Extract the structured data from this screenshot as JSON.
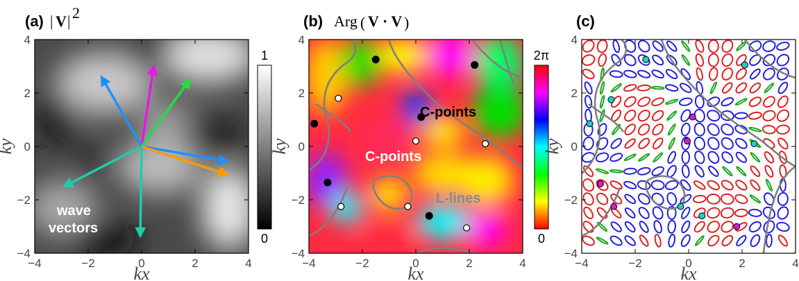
{
  "chart_data": [
    {
      "panel": "(a)",
      "title_parts": [
        "(a)",
        "|V|",
        "2"
      ],
      "type": "heatmap",
      "xlabel": "kx",
      "ylabel": "ky",
      "xlim": [
        -4,
        4
      ],
      "ylim": [
        -4,
        4
      ],
      "xticks": [
        "−4",
        "−2",
        "0",
        "2",
        "4"
      ],
      "yticks": [
        "4",
        "2",
        "0",
        "−2",
        "−4"
      ],
      "colorbar": {
        "min_label": "0",
        "max_label": "1",
        "colors": [
          "#000000",
          "#ffffff"
        ]
      },
      "annotation": [
        "wave",
        "vectors"
      ],
      "arrows": [
        {
          "color": "#1e90ff",
          "dx": -1.5,
          "dy": 2.6
        },
        {
          "color": "#e619e6",
          "dx": 0.45,
          "dy": 3.0
        },
        {
          "color": "#22dd44",
          "dx": 1.8,
          "dy": 2.5
        },
        {
          "color": "#1e90ff",
          "dx": 3.2,
          "dy": -0.55
        },
        {
          "color": "#ff9900",
          "dx": 3.2,
          "dy": -1.05
        },
        {
          "color": "#22ccaa",
          "dx": -2.9,
          "dy": -1.5
        },
        {
          "color": "#22ccaa",
          "dx": -0.05,
          "dy": -3.35
        }
      ]
    },
    {
      "panel": "(b)",
      "title_parts": [
        "(b)",
        "Arg",
        "V · V"
      ],
      "type": "heatmap",
      "xlabel": "kx",
      "ylabel": "ky",
      "xlim": [
        -4,
        4
      ],
      "ylim": [
        -4,
        4
      ],
      "xticks": [
        "−4",
        "−2",
        "0",
        "2",
        "4"
      ],
      "yticks": [
        "4",
        "2",
        "0",
        "−2",
        "−4"
      ],
      "colorbar": {
        "min_label": "0",
        "max_label": "2π",
        "colors": [
          "#ff0000",
          "#ffff00",
          "#00ff00",
          "#00ffff",
          "#0000ff",
          "#ff00ff",
          "#ff0000"
        ]
      },
      "annotations": {
        "c_points_top": "C-points",
        "c_points_mid": "C-points",
        "l_lines": "L-lines"
      },
      "c_points_black": [
        [
          -1.5,
          3.25
        ],
        [
          2.2,
          3.05
        ],
        [
          0.2,
          1.1
        ],
        [
          -3.8,
          0.85
        ],
        [
          -3.3,
          -1.35
        ],
        [
          0.5,
          -2.6
        ]
      ],
      "c_points_white": [
        [
          -2.9,
          1.8
        ],
        [
          0.0,
          0.2
        ],
        [
          2.6,
          0.1
        ],
        [
          -2.8,
          -2.25
        ],
        [
          -0.3,
          -2.25
        ],
        [
          1.9,
          -3.05
        ]
      ]
    },
    {
      "panel": "(c)",
      "title_parts": [
        "(c)"
      ],
      "type": "scatter",
      "xlabel": "kx",
      "ylabel": "ky",
      "xlim": [
        -4,
        4
      ],
      "ylim": [
        -4,
        4
      ],
      "xticks": [
        "−4",
        "−2",
        "0",
        "2",
        "4"
      ],
      "yticks": [
        "4",
        "2",
        "0",
        "−2",
        "−4"
      ],
      "markers_cyan": [
        [
          -1.6,
          3.25
        ],
        [
          2.1,
          3.05
        ],
        [
          -2.9,
          1.75
        ],
        [
          -3.7,
          0.85
        ],
        [
          2.45,
          0.1
        ],
        [
          -0.3,
          -2.25
        ],
        [
          0.5,
          -2.6
        ]
      ],
      "markers_magenta": [
        [
          0.15,
          1.1
        ],
        [
          -0.05,
          0.2
        ],
        [
          -3.3,
          -1.4
        ],
        [
          -2.8,
          -2.25
        ],
        [
          1.8,
          -3.0
        ]
      ]
    }
  ]
}
